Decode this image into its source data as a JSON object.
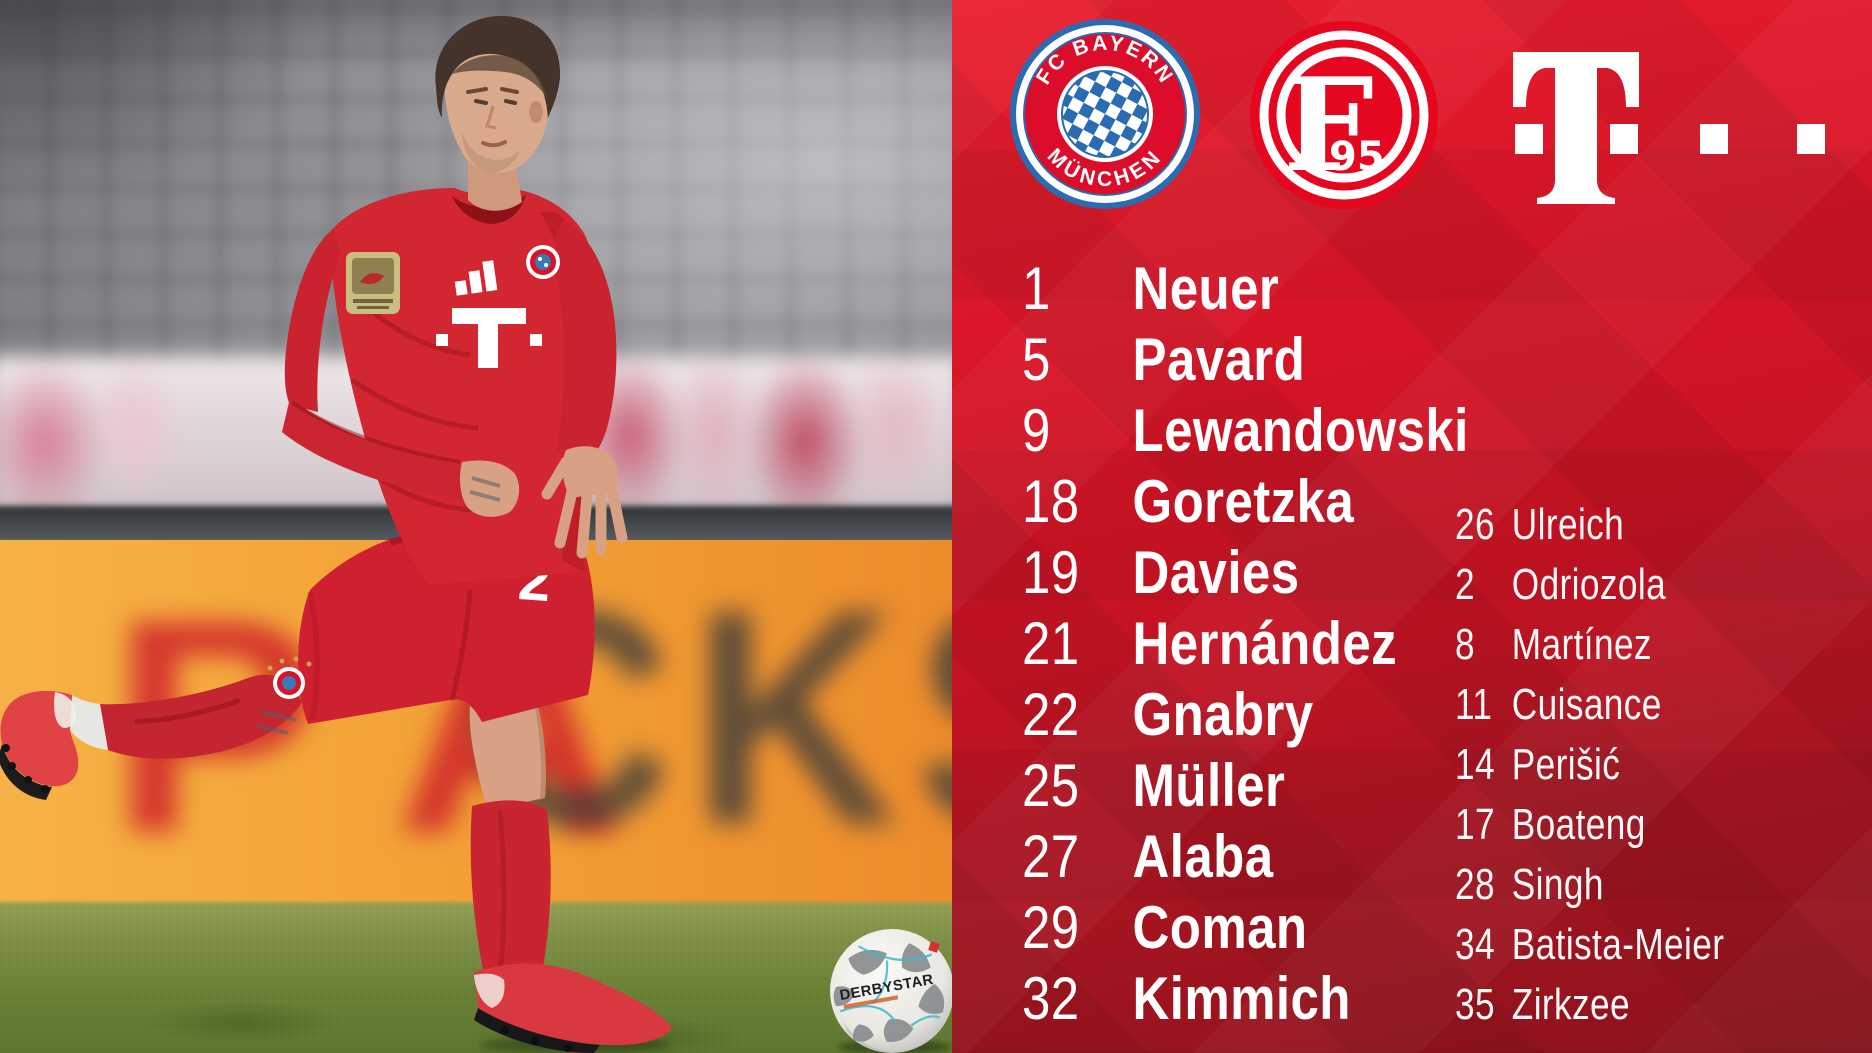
{
  "header": {
    "bayern_crest": {
      "top_text": "FC BAYERN",
      "bottom_text": "MÜNCHEN"
    },
    "fortuna_crest": {
      "letter": "F",
      "number": "95"
    },
    "telekom_logo": "T"
  },
  "lineup": {
    "starting": [
      {
        "num": "1",
        "name": "Neuer"
      },
      {
        "num": "5",
        "name": "Pavard"
      },
      {
        "num": "9",
        "name": "Lewandowski"
      },
      {
        "num": "18",
        "name": "Goretzka"
      },
      {
        "num": "19",
        "name": "Davies"
      },
      {
        "num": "21",
        "name": "Hernández"
      },
      {
        "num": "22",
        "name": "Gnabry"
      },
      {
        "num": "25",
        "name": "Müller"
      },
      {
        "num": "27",
        "name": "Alaba"
      },
      {
        "num": "29",
        "name": "Coman"
      },
      {
        "num": "32",
        "name": "Kimmich"
      }
    ],
    "bench": [
      {
        "num": "26",
        "name": "Ulreich"
      },
      {
        "num": "2",
        "name": "Odriozola"
      },
      {
        "num": "8",
        "name": "Martínez"
      },
      {
        "num": "11",
        "name": "Cuisance"
      },
      {
        "num": "14",
        "name": "Perišić"
      },
      {
        "num": "17",
        "name": "Boateng"
      },
      {
        "num": "28",
        "name": "Singh"
      },
      {
        "num": "34",
        "name": "Batista-Meier"
      },
      {
        "num": "35",
        "name": "Zirkzee"
      }
    ]
  },
  "photo": {
    "jersey_number": "2",
    "ball_brand": "DERBYSTAR",
    "board_letters_red": "PA",
    "board_letters_dark": "CKST"
  },
  "colors": {
    "panel_red": "#d41226",
    "panel_red_dark": "#8a121c",
    "bayern_blue": "#2a6bb1",
    "crest_red": "#dc0c2b",
    "fortuna_red": "#e5061f",
    "board_orange": "#f3a438",
    "pitch_green": "#6e8438",
    "white": "#ffffff"
  }
}
